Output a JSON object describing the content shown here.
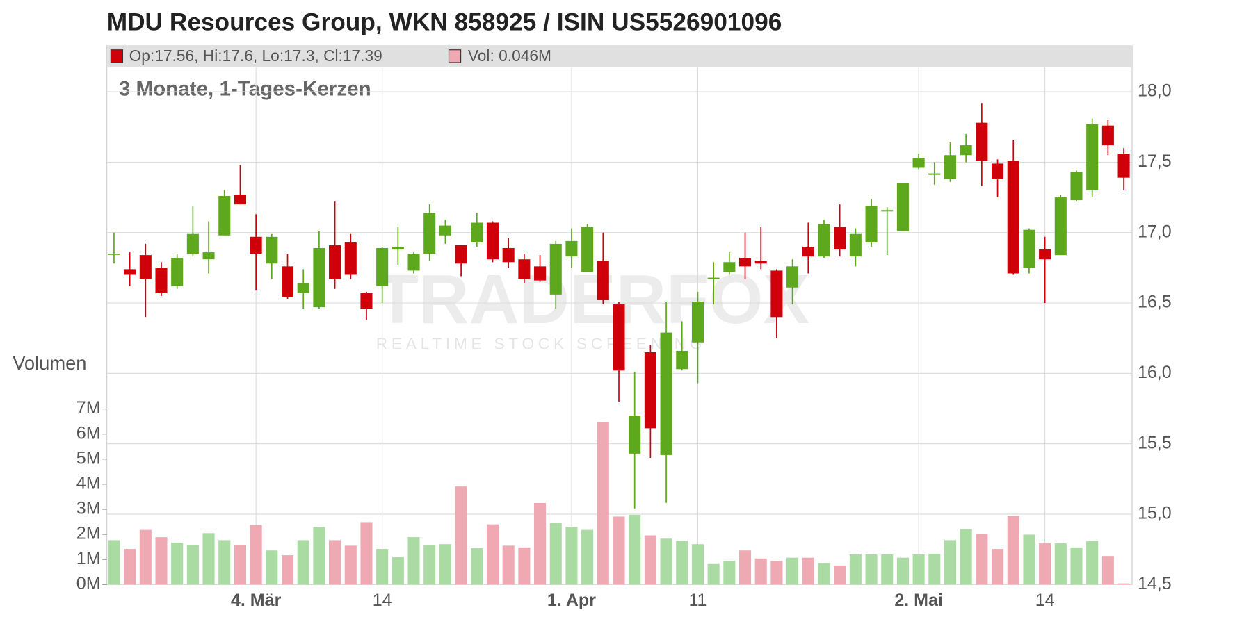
{
  "chart_data": {
    "type": "candlestick",
    "title": "MDU Resources Group, WKN 858925 / ISIN US5526901096",
    "subtitle": "3 Monate, 1-Tages-Kerzen",
    "legend_price": "Op:17.56, Hi:17.6, Lo:17.3, Cl:17.39",
    "legend_volume": "Vol: 0.046M",
    "volume_label": "Volumen",
    "watermark": "TRADERFOX",
    "watermark_sub": "REALTIME STOCK SCREENING",
    "categories": [
      null,
      null,
      null,
      null,
      null,
      null,
      null,
      null,
      null,
      "4. Mär",
      null,
      null,
      null,
      null,
      null,
      null,
      null,
      "14",
      null,
      null,
      null,
      null,
      null,
      null,
      null,
      null,
      null,
      null,
      null,
      "1. Apr",
      null,
      null,
      null,
      null,
      null,
      null,
      null,
      "11",
      null,
      null,
      null,
      null,
      null,
      null,
      null,
      null,
      null,
      null,
      null,
      null,
      null,
      "2. Mai",
      null,
      null,
      null,
      null,
      null,
      null,
      null,
      "14",
      null,
      null,
      null,
      null,
      null
    ],
    "open": [
      16.85,
      16.74,
      16.84,
      16.75,
      16.62,
      16.85,
      16.81,
      16.98,
      17.27,
      16.97,
      16.78,
      16.76,
      16.57,
      16.47,
      16.91,
      16.93,
      16.57,
      16.62,
      16.88,
      16.73,
      16.85,
      16.98,
      16.91,
      16.93,
      17.07,
      16.89,
      16.81,
      16.76,
      16.56,
      16.83,
      16.72,
      16.8,
      16.49,
      15.43,
      16.15,
      15.42,
      16.03,
      16.22,
      16.67,
      16.72,
      16.82,
      16.8,
      16.73,
      16.61,
      16.9,
      16.83,
      17.04,
      16.83,
      16.93,
      17.15,
      17.01,
      17.46,
      17.41,
      17.38,
      17.55,
      17.78,
      17.49,
      17.51,
      16.75,
      16.88,
      16.84,
      17.23,
      17.3,
      17.76,
      17.56
    ],
    "high": [
      17.0,
      16.86,
      16.92,
      16.79,
      16.85,
      17.19,
      17.08,
      17.3,
      17.48,
      17.13,
      16.99,
      16.85,
      16.74,
      17.01,
      17.22,
      16.99,
      16.58,
      16.9,
      17.04,
      16.86,
      17.2,
      17.09,
      16.91,
      17.14,
      17.08,
      16.96,
      16.85,
      16.84,
      16.94,
      17.03,
      17.06,
      17.0,
      16.51,
      16.01,
      16.2,
      16.51,
      16.37,
      16.58,
      16.79,
      16.86,
      17.0,
      17.04,
      16.74,
      16.81,
      17.07,
      17.09,
      17.2,
      17.03,
      17.24,
      17.18,
      17.34,
      17.56,
      17.5,
      17.64,
      17.7,
      17.92,
      17.52,
      17.66,
      17.03,
      16.97,
      17.27,
      17.44,
      17.81,
      17.8,
      17.6
    ],
    "low": [
      16.78,
      16.62,
      16.4,
      16.55,
      16.6,
      16.83,
      16.71,
      16.98,
      17.2,
      16.59,
      16.67,
      16.53,
      16.46,
      16.46,
      16.6,
      16.67,
      16.38,
      16.5,
      16.77,
      16.71,
      16.8,
      16.92,
      16.69,
      16.9,
      16.79,
      16.75,
      16.64,
      16.65,
      16.46,
      16.75,
      16.72,
      16.49,
      15.8,
      15.04,
      15.4,
      15.08,
      16.02,
      15.93,
      16.49,
      16.7,
      16.67,
      16.74,
      16.25,
      16.49,
      16.71,
      16.82,
      16.83,
      16.76,
      16.9,
      16.84,
      17.01,
      17.45,
      17.34,
      17.36,
      17.5,
      17.33,
      17.25,
      16.7,
      16.71,
      16.5,
      16.84,
      17.22,
      17.25,
      17.55,
      17.3
    ],
    "close": [
      16.85,
      16.7,
      16.67,
      16.57,
      16.82,
      16.99,
      16.86,
      17.26,
      17.2,
      16.85,
      16.97,
      16.54,
      16.64,
      16.89,
      16.67,
      16.7,
      16.46,
      16.89,
      16.9,
      16.85,
      17.14,
      17.05,
      16.78,
      17.07,
      16.81,
      16.79,
      16.67,
      16.66,
      16.92,
      16.94,
      17.04,
      16.52,
      16.02,
      15.7,
      15.61,
      16.29,
      16.16,
      16.51,
      16.68,
      16.79,
      16.76,
      16.78,
      16.4,
      16.76,
      16.83,
      17.06,
      16.88,
      16.99,
      17.19,
      17.16,
      17.35,
      17.53,
      17.42,
      17.55,
      17.62,
      17.51,
      17.38,
      16.71,
      17.02,
      16.81,
      17.25,
      17.43,
      17.77,
      17.62,
      17.39
    ],
    "volume": [
      1.77,
      1.42,
      2.18,
      1.89,
      1.67,
      1.58,
      2.05,
      1.77,
      1.58,
      2.37,
      1.36,
      1.17,
      1.77,
      2.3,
      1.77,
      1.55,
      2.49,
      1.42,
      1.1,
      1.89,
      1.58,
      1.61,
      3.91,
      1.45,
      2.4,
      1.55,
      1.48,
      3.25,
      2.46,
      2.3,
      2.18,
      6.47,
      2.71,
      2.78,
      1.96,
      1.83,
      1.74,
      1.61,
      0.82,
      0.95,
      1.36,
      1.04,
      0.95,
      1.07,
      1.07,
      0.85,
      0.76,
      1.2,
      1.2,
      1.2,
      1.07,
      1.2,
      1.23,
      1.77,
      2.21,
      2.02,
      1.42,
      2.74,
      1.99,
      1.64,
      1.64,
      1.48,
      1.74,
      1.14,
      0.046
    ],
    "up_color": "#5ea81e",
    "down_color": "#d0000b",
    "volume_up_color": "#a9dba2",
    "volume_down_color": "#eea9b2",
    "ylim": [
      14.5,
      18
    ],
    "yticks": [
      {
        "value": 14.5,
        "label": "14,5"
      },
      {
        "value": 15,
        "label": "15,0"
      },
      {
        "value": 15.5,
        "label": "15,5"
      },
      {
        "value": 16,
        "label": "16,0"
      },
      {
        "value": 16.5,
        "label": "16,5"
      },
      {
        "value": 17,
        "label": "17,0"
      },
      {
        "value": 17.5,
        "label": "17,5"
      },
      {
        "value": 18,
        "label": "18,0"
      }
    ],
    "volume_ylim": [
      0,
      7
    ],
    "volume_ticks": [
      {
        "value": 0,
        "label": "0M"
      },
      {
        "value": 1,
        "label": "1M"
      },
      {
        "value": 2,
        "label": "2M"
      },
      {
        "value": 3,
        "label": "3M"
      },
      {
        "value": 4,
        "label": "4M"
      },
      {
        "value": 5,
        "label": "5M"
      },
      {
        "value": 6,
        "label": "6M"
      },
      {
        "value": 7,
        "label": "7M"
      }
    ],
    "grid": true
  }
}
